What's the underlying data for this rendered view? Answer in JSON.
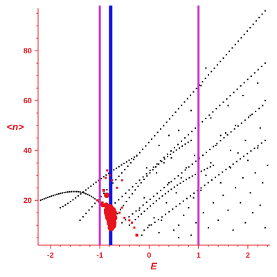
{
  "chart_data": {
    "type": "scatter",
    "title": "",
    "xlabel": "E",
    "ylabel": "<n>",
    "xlim": [
      -2.25,
      2.45
    ],
    "ylim": [
      2,
      97
    ],
    "x_ticks": [
      -2,
      -1,
      0,
      1,
      2
    ],
    "y_ticks": [
      20,
      40,
      60,
      80
    ],
    "x_tick_labels": [
      "-2",
      "-1",
      "0",
      "1",
      "2"
    ],
    "y_tick_labels": [
      "20",
      "40",
      "60",
      "80"
    ],
    "grid": false,
    "colors": {
      "axis": "#e8141c",
      "points": "#000000",
      "highlight": "#e8141c",
      "band_edges": "#c832c8",
      "fermi_line": "#1414e6"
    },
    "vertical_lines": [
      {
        "x": -1.0,
        "color": "#c832c8",
        "style": "medium"
      },
      {
        "x": -0.78,
        "color": "#1414e6",
        "style": "thick"
      },
      {
        "x": 1.0,
        "color": "#c832c8",
        "style": "medium"
      }
    ],
    "series": [
      {
        "role": "arcs",
        "color": "#000000",
        "arcs": [
          {
            "x0": -2.2,
            "y0": 20,
            "xpeak": -1.5,
            "ypeak": 23.5,
            "x1": -0.95,
            "y1": 18,
            "n": 34,
            "down": true
          },
          {
            "x0": -1.8,
            "y0": 17,
            "xpeak": -0.9,
            "ypeak": 25,
            "x1": -0.25,
            "y1": 38,
            "n": 30,
            "up": true
          },
          {
            "x0": -1.4,
            "y0": 12,
            "x1": 2.35,
            "y1": 96,
            "n": 62
          },
          {
            "x0": -0.9,
            "y0": 15,
            "x1": 2.35,
            "y1": 75,
            "n": 46
          },
          {
            "x0": -0.7,
            "y0": 13,
            "x1": 0.85,
            "y1": 44,
            "n": 26,
            "curve": 0.12
          },
          {
            "x0": -0.55,
            "y0": 11,
            "x1": 2.3,
            "y1": 58,
            "n": 40
          },
          {
            "x0": -0.4,
            "y0": 10,
            "x1": 1.3,
            "y1": 34,
            "n": 28,
            "curve": 0.1
          },
          {
            "x0": -0.1,
            "y0": 8,
            "x1": 2.35,
            "y1": 44,
            "n": 34
          }
        ],
        "scatter": [
          [
            -0.2,
            16
          ],
          [
            -0.1,
            21
          ],
          [
            0.1,
            13
          ],
          [
            0.25,
            12
          ],
          [
            0.35,
            19
          ],
          [
            0.4,
            27
          ],
          [
            0.5,
            8
          ],
          [
            0.55,
            23
          ],
          [
            0.6,
            10
          ],
          [
            0.65,
            29
          ],
          [
            0.7,
            14
          ],
          [
            0.75,
            33
          ],
          [
            0.8,
            17
          ],
          [
            0.85,
            6
          ],
          [
            0.9,
            21
          ],
          [
            0.92,
            38
          ],
          [
            0.95,
            11
          ],
          [
            1.05,
            24
          ],
          [
            1.1,
            15
          ],
          [
            1.15,
            30
          ],
          [
            1.2,
            9
          ],
          [
            1.25,
            35
          ],
          [
            1.3,
            19
          ],
          [
            1.35,
            42
          ],
          [
            1.4,
            12
          ],
          [
            1.45,
            27
          ],
          [
            1.5,
            22
          ],
          [
            1.55,
            47
          ],
          [
            1.6,
            16
          ],
          [
            1.65,
            33
          ],
          [
            1.7,
            8
          ],
          [
            1.75,
            25
          ],
          [
            1.8,
            39
          ],
          [
            1.85,
            19
          ],
          [
            1.9,
            29
          ],
          [
            1.95,
            11
          ],
          [
            2.0,
            36
          ],
          [
            2.05,
            23
          ],
          [
            2.1,
            15
          ],
          [
            2.15,
            31
          ],
          [
            2.2,
            41
          ],
          [
            2.25,
            18
          ],
          [
            2.3,
            27
          ],
          [
            2.35,
            9
          ],
          [
            2.4,
            34
          ],
          [
            0.15,
            31
          ],
          [
            0.3,
            35
          ],
          [
            0.45,
            37
          ],
          [
            -0.3,
            9
          ],
          [
            -0.15,
            6
          ],
          [
            0.0,
            10
          ],
          [
            0.2,
            7
          ],
          [
            0.6,
            5
          ],
          [
            1.0,
            4
          ],
          [
            1.25,
            53
          ],
          [
            1.6,
            58
          ],
          [
            1.9,
            62
          ],
          [
            2.2,
            67
          ],
          [
            2.35,
            60
          ],
          [
            0.6,
            48
          ],
          [
            0.85,
            56
          ],
          [
            1.05,
            66
          ],
          [
            1.15,
            73
          ],
          [
            0.4,
            46
          ],
          [
            0.2,
            42
          ],
          [
            -0.05,
            33
          ],
          [
            1.45,
            46
          ],
          [
            1.75,
            50
          ],
          [
            2.05,
            54
          ],
          [
            2.25,
            49
          ],
          [
            1.95,
            44
          ],
          [
            1.65,
            40
          ]
        ]
      },
      {
        "role": "highlighted",
        "color": "#e8141c",
        "points": [
          [
            -0.87,
            18,
            4
          ],
          [
            -0.85,
            16,
            5
          ],
          [
            -0.83,
            15,
            6
          ],
          [
            -0.82,
            13,
            5
          ],
          [
            -0.8,
            14,
            7
          ],
          [
            -0.78,
            12,
            6
          ],
          [
            -0.76,
            11,
            7
          ],
          [
            -0.75,
            10,
            6
          ],
          [
            -0.73,
            13,
            6
          ],
          [
            -0.72,
            15,
            5
          ],
          [
            -0.74,
            16,
            5
          ],
          [
            -0.79,
            17,
            5
          ],
          [
            -0.77,
            9,
            5
          ],
          [
            -0.86,
            22,
            4
          ],
          [
            -0.94,
            18,
            3
          ],
          [
            -0.95,
            19,
            2
          ],
          [
            -1.05,
            20,
            1.5
          ],
          [
            -0.92,
            24,
            2
          ],
          [
            -0.88,
            29,
            1.5
          ],
          [
            -0.85,
            32,
            1.5
          ],
          [
            -0.7,
            14,
            1.5
          ],
          [
            -0.67,
            13,
            1.5
          ],
          [
            -0.6,
            15,
            1.5
          ],
          [
            -0.55,
            17,
            1.5
          ],
          [
            -0.5,
            13,
            1.5
          ],
          [
            -0.4,
            12,
            1.5
          ],
          [
            -0.35,
            11,
            1.5
          ],
          [
            -0.3,
            9,
            1.5
          ],
          [
            -0.25,
            6,
            2
          ],
          [
            -0.65,
            25,
            1.5
          ],
          [
            -0.55,
            28,
            1.5
          ],
          [
            -0.75,
            28,
            1.5
          ],
          [
            -0.8,
            30,
            1.5
          ]
        ]
      }
    ]
  }
}
